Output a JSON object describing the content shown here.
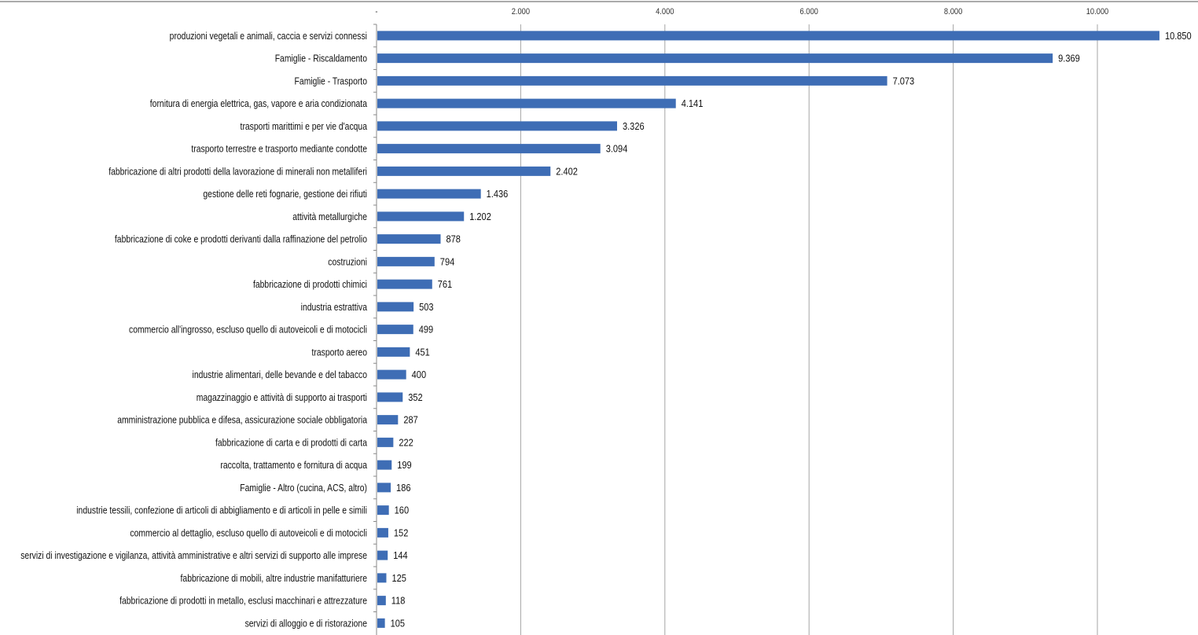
{
  "chart_data": {
    "type": "bar",
    "orientation": "horizontal",
    "title": "",
    "xlabel": "",
    "ylabel": "",
    "xlim": [
      0,
      11000
    ],
    "grid": true,
    "legend": "none",
    "bar_color": "#3E6DB5",
    "x_ticks": [
      0,
      2000,
      4000,
      6000,
      8000,
      10000
    ],
    "x_tick_labels": [
      "-",
      "2.000",
      "4.000",
      "6.000",
      "8.000",
      "10.000"
    ],
    "categories": [
      "produzioni vegetali e animali, caccia e servizi connessi",
      "Famiglie - Riscaldamento",
      "Famiglie - Trasporto",
      "fornitura di energia elettrica, gas, vapore e aria condizionata",
      "trasporti marittimi e per vie d'acqua",
      "trasporto terrestre e trasporto mediante condotte",
      "fabbricazione di altri prodotti della lavorazione di minerali non metalliferi",
      "gestione delle reti fognarie, gestione dei rifiuti",
      "attività metallurgiche",
      "fabbricazione di coke e prodotti derivanti dalla raffinazione del petrolio",
      "costruzioni",
      "fabbricazione di prodotti chimici",
      "industria estrattiva",
      "commercio all'ingrosso, escluso quello di autoveicoli e di motocicli",
      "trasporto aereo",
      "industrie alimentari, delle bevande e del tabacco",
      "magazzinaggio e attività di supporto ai trasporti",
      "amministrazione pubblica e difesa, assicurazione sociale obbligatoria",
      "fabbricazione di carta e di prodotti di carta",
      "raccolta, trattamento e fornitura di acqua",
      "Famiglie - Altro (cucina, ACS, altro)",
      "industrie tessili, confezione di articoli di abbigliamento e di articoli in pelle e simili",
      "commercio al dettaglio, escluso quello di autoveicoli e di motocicli",
      "servizi di investigazione e vigilanza, attività amministrative e altri servizi di supporto alle imprese",
      "fabbricazione di mobili, altre industrie manifatturiere",
      "fabbricazione di prodotti in metallo, esclusi macchinari e attrezzature",
      "servizi di alloggio e di ristorazione"
    ],
    "values": [
      10850,
      9369,
      7073,
      4141,
      3326,
      3094,
      2402,
      1436,
      1202,
      878,
      794,
      761,
      503,
      499,
      451,
      400,
      352,
      287,
      222,
      199,
      186,
      160,
      152,
      144,
      125,
      118,
      105
    ],
    "value_labels": [
      "10.850",
      "9.369",
      "7.073",
      "4.141",
      "3.326",
      "3.094",
      "2.402",
      "1.436",
      "1.202",
      "878",
      "794",
      "761",
      "503",
      "499",
      "451",
      "400",
      "352",
      "287",
      "222",
      "199",
      "186",
      "160",
      "152",
      "144",
      "125",
      "118",
      "105"
    ]
  }
}
